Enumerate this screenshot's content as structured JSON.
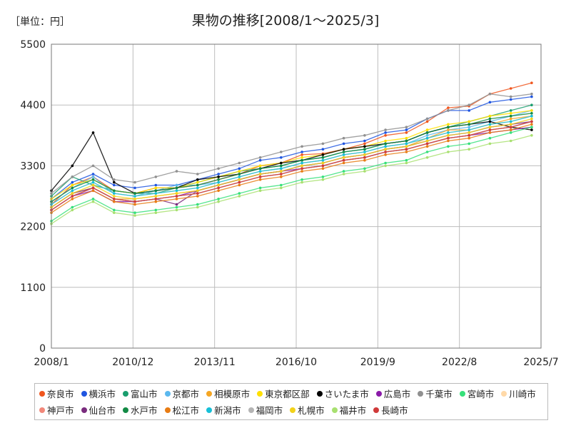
{
  "chart_data": {
    "type": "line",
    "title": "果物の推移[2008/1～2025/3]",
    "unit_label": "［単位：円］",
    "xlabel": "",
    "ylabel": "",
    "x_range": [
      "2008-01",
      "2025-07"
    ],
    "ylim": [
      0,
      5500
    ],
    "y_ticks": [
      "0",
      "1100",
      "2200",
      "3300",
      "4400",
      "5500"
    ],
    "x_ticks": [
      "2008/1",
      "2010/12",
      "2013/11",
      "2016/10",
      "2019/9",
      "2022/8",
      "2025/7"
    ],
    "grid": true,
    "legend_position": "bottom",
    "series": [
      {
        "name": "奈良市",
        "color": "#f0561e",
        "values": [
          2600,
          2950,
          3100,
          2850,
          2800,
          2900,
          2900,
          2950,
          3050,
          3150,
          3300,
          3350,
          3500,
          3520,
          3600,
          3700,
          3850,
          3900,
          4100,
          4350,
          4380,
          4600,
          4700,
          4800
        ]
      },
      {
        "name": "横浜市",
        "color": "#1f55e0",
        "values": [
          2700,
          3000,
          3150,
          2950,
          2900,
          2950,
          2950,
          3050,
          3150,
          3250,
          3400,
          3450,
          3550,
          3600,
          3700,
          3750,
          3900,
          3950,
          4150,
          4300,
          4300,
          4450,
          4500,
          4550
        ]
      },
      {
        "name": "富山市",
        "color": "#1a9e6e",
        "values": [
          2750,
          3100,
          2950,
          2850,
          2800,
          2800,
          2900,
          3000,
          3100,
          3200,
          3250,
          3300,
          3400,
          3450,
          3550,
          3600,
          3700,
          3750,
          3900,
          4000,
          4100,
          4200,
          4300,
          4400
        ]
      },
      {
        "name": "京都市",
        "color": "#5bb8ee",
        "values": [
          2650,
          2900,
          3100,
          2800,
          2750,
          2850,
          2950,
          2950,
          3000,
          3100,
          3200,
          3250,
          3350,
          3400,
          3500,
          3550,
          3650,
          3700,
          3850,
          3950,
          4000,
          4100,
          4200,
          4300
        ]
      },
      {
        "name": "相模原市",
        "color": "#f5a623",
        "values": [
          2550,
          2800,
          2900,
          2700,
          2700,
          2750,
          2800,
          2850,
          2950,
          3050,
          3150,
          3200,
          3300,
          3350,
          3450,
          3500,
          3600,
          3650,
          3800,
          3950,
          3950,
          4050,
          4150,
          4200
        ]
      },
      {
        "name": "東京都区部",
        "color": "#ffe000",
        "values": [
          2700,
          2950,
          3050,
          2850,
          2800,
          2900,
          2900,
          3000,
          3100,
          3200,
          3300,
          3350,
          3450,
          3500,
          3600,
          3650,
          3750,
          3800,
          3950,
          4050,
          4100,
          4200,
          4250,
          4300
        ]
      },
      {
        "name": "さいたま市",
        "color": "#000000",
        "values": [
          2850,
          3300,
          3900,
          3000,
          2800,
          2850,
          2900,
          3050,
          3100,
          3150,
          3250,
          3350,
          3400,
          3500,
          3600,
          3650,
          3700,
          3750,
          3900,
          4000,
          4050,
          4100,
          4000,
          3950
        ]
      },
      {
        "name": "広島市",
        "color": "#8a1aa8",
        "values": [
          2500,
          2750,
          2850,
          2650,
          2650,
          2700,
          2750,
          2850,
          2950,
          3050,
          3150,
          3200,
          3250,
          3300,
          3400,
          3450,
          3550,
          3600,
          3700,
          3800,
          3850,
          3900,
          3950,
          4000
        ]
      },
      {
        "name": "千葉市",
        "color": "#909090",
        "values": [
          2800,
          3100,
          3300,
          3050,
          3000,
          3100,
          3200,
          3150,
          3250,
          3350,
          3450,
          3550,
          3650,
          3700,
          3800,
          3850,
          3950,
          4000,
          4150,
          4300,
          4400,
          4600,
          4550,
          4600
        ]
      },
      {
        "name": "宮崎市",
        "color": "#36e07a",
        "values": [
          2300,
          2550,
          2700,
          2500,
          2450,
          2500,
          2550,
          2600,
          2700,
          2800,
          2900,
          2950,
          3050,
          3100,
          3200,
          3250,
          3350,
          3400,
          3550,
          3650,
          3700,
          3800,
          3900,
          4000
        ]
      },
      {
        "name": "川崎市",
        "color": "#ffd9a8",
        "values": [
          2600,
          2850,
          3000,
          2800,
          2750,
          2800,
          2850,
          2900,
          3000,
          3100,
          3200,
          3250,
          3350,
          3400,
          3500,
          3550,
          3650,
          3700,
          3800,
          3900,
          3950,
          4050,
          4100,
          4200
        ]
      },
      {
        "name": "神戸市",
        "color": "#f2887a",
        "values": [
          2500,
          2750,
          2900,
          2700,
          2650,
          2700,
          2750,
          2800,
          2900,
          3000,
          3100,
          3150,
          3250,
          3300,
          3400,
          3450,
          3550,
          3600,
          3700,
          3800,
          3850,
          3950,
          4000,
          4100
        ]
      },
      {
        "name": "仙台市",
        "color": "#7a2c7e",
        "values": [
          2550,
          2800,
          2900,
          2700,
          2650,
          2700,
          2600,
          2850,
          2950,
          3050,
          3150,
          3200,
          3300,
          3350,
          3450,
          3500,
          3600,
          3650,
          3750,
          3850,
          3900,
          4000,
          4050,
          4100
        ]
      },
      {
        "name": "水戸市",
        "color": "#138a45",
        "values": [
          2650,
          2900,
          3050,
          2850,
          2800,
          2850,
          2900,
          2950,
          3050,
          3150,
          3250,
          3300,
          3400,
          3450,
          3550,
          3600,
          3700,
          3750,
          3900,
          4000,
          4050,
          4150,
          4200,
          4250
        ]
      },
      {
        "name": "松江市",
        "color": "#e87c14",
        "values": [
          2450,
          2700,
          2850,
          2650,
          2600,
          2650,
          2700,
          2750,
          2850,
          2950,
          3050,
          3100,
          3200,
          3250,
          3350,
          3400,
          3500,
          3550,
          3650,
          3750,
          3800,
          3900,
          3950,
          4050
        ]
      },
      {
        "name": "新潟市",
        "color": "#17c0d8",
        "values": [
          2600,
          2850,
          3000,
          2800,
          2750,
          2800,
          2850,
          2900,
          3000,
          3100,
          3200,
          3250,
          3350,
          3400,
          3500,
          3550,
          3650,
          3700,
          3800,
          3900,
          3950,
          4050,
          4100,
          4200
        ]
      },
      {
        "name": "福岡市",
        "color": "#b4b4b4",
        "values": [
          2500,
          2750,
          2900,
          2700,
          2650,
          2700,
          2750,
          2800,
          2900,
          3000,
          3100,
          3150,
          3250,
          3300,
          3400,
          3450,
          3550,
          3600,
          3700,
          3800,
          3850,
          3950,
          4000,
          4100
        ]
      },
      {
        "name": "札幌市",
        "color": "#f2d21a",
        "values": [
          2550,
          2800,
          2950,
          2750,
          2700,
          2750,
          2800,
          2850,
          2950,
          3050,
          3150,
          3200,
          3300,
          3350,
          3450,
          3500,
          3600,
          3650,
          3750,
          3850,
          3900,
          4000,
          4050,
          4150
        ]
      },
      {
        "name": "福井市",
        "color": "#a8e070",
        "values": [
          2250,
          2500,
          2650,
          2450,
          2400,
          2450,
          2500,
          2550,
          2650,
          2750,
          2850,
          2900,
          3000,
          3050,
          3150,
          3200,
          3300,
          3350,
          3450,
          3550,
          3600,
          3700,
          3750,
          3850
        ]
      },
      {
        "name": "長崎市",
        "color": "#d03a3a",
        "values": [
          2500,
          2750,
          2900,
          2700,
          2650,
          2700,
          2750,
          2800,
          2900,
          3000,
          3100,
          3150,
          3250,
          3300,
          3400,
          3450,
          3550,
          3600,
          3700,
          3800,
          3850,
          3950,
          4000,
          4100
        ]
      }
    ]
  }
}
